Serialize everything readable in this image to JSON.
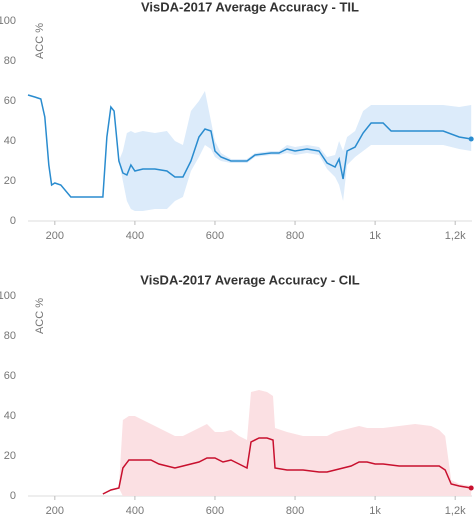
{
  "chart_data": [
    {
      "type": "line",
      "title": "VisDA-2017 Average Accuracy - TIL",
      "y_label": "ACC %",
      "grid": false,
      "xlim": [
        133,
        1242
      ],
      "ylim": [
        0,
        100
      ],
      "xticks": [
        200,
        400,
        600,
        800,
        {
          "value": 1000,
          "label": "1k"
        },
        {
          "value": 1200,
          "label": "1,2k"
        }
      ],
      "yticks": [
        0,
        20,
        40,
        60,
        80,
        100
      ],
      "x": [
        133,
        150,
        165,
        175,
        185,
        192,
        200,
        215,
        240,
        320,
        330,
        340,
        348,
        360,
        370,
        380,
        390,
        400,
        420,
        450,
        480,
        500,
        520,
        540,
        560,
        575,
        590,
        600,
        615,
        640,
        680,
        700,
        740,
        760,
        780,
        800,
        830,
        860,
        880,
        900,
        910,
        920,
        930,
        950,
        970,
        990,
        1020,
        1040,
        1170,
        1210,
        1240
      ],
      "series": [
        {
          "color": "#2a8ccf",
          "band_color": "#dcebfa",
          "values": [
            63,
            62,
            61,
            52,
            28,
            18,
            19,
            18,
            12,
            12,
            42,
            57,
            55,
            30,
            24,
            23,
            28,
            25,
            26,
            26,
            25,
            22,
            22,
            30,
            42,
            46,
            45,
            35,
            32,
            30,
            30,
            33,
            34,
            34,
            36,
            35,
            36,
            35,
            29,
            27,
            31,
            21,
            35,
            37,
            44,
            49,
            49,
            45,
            45,
            42,
            41
          ],
          "band_lower": [
            63,
            62,
            61,
            52,
            28,
            18,
            19,
            18,
            12,
            12,
            42,
            57,
            55,
            30,
            20,
            10,
            6,
            5,
            5,
            6,
            6,
            10,
            12,
            25,
            32,
            38,
            36,
            32,
            30,
            29,
            29,
            32,
            33,
            33,
            34,
            33,
            34,
            33,
            26,
            22,
            18,
            10,
            28,
            32,
            35,
            38,
            38,
            38,
            38,
            36,
            35
          ],
          "band_upper": [
            63,
            62,
            61,
            52,
            28,
            18,
            19,
            18,
            12,
            12,
            42,
            57,
            55,
            30,
            35,
            44,
            45,
            44,
            45,
            44,
            45,
            40,
            38,
            55,
            60,
            65,
            50,
            40,
            34,
            31,
            31,
            34,
            35,
            35,
            38,
            37,
            38,
            37,
            32,
            33,
            40,
            35,
            42,
            45,
            55,
            58,
            58,
            58,
            58,
            57,
            58
          ]
        }
      ]
    },
    {
      "type": "line",
      "title": "VisDA-2017 Average Accuracy - CIL",
      "y_label": "ACC %",
      "grid": false,
      "xlim": [
        133,
        1242
      ],
      "ylim": [
        0,
        100
      ],
      "xticks": [
        200,
        400,
        600,
        800,
        {
          "value": 1000,
          "label": "1k"
        },
        {
          "value": 1200,
          "label": "1,2k"
        }
      ],
      "yticks": [
        0,
        20,
        40,
        60,
        80,
        100
      ],
      "x": [
        320,
        340,
        360,
        370,
        385,
        400,
        420,
        440,
        460,
        480,
        500,
        520,
        540,
        560,
        580,
        600,
        620,
        640,
        660,
        680,
        690,
        710,
        730,
        745,
        750,
        780,
        820,
        860,
        880,
        900,
        940,
        960,
        980,
        1000,
        1020,
        1060,
        1100,
        1140,
        1160,
        1175,
        1190,
        1210,
        1240
      ],
      "series": [
        {
          "color": "#c8102e",
          "band_color": "#fbe0e3",
          "values": [
            1,
            3,
            4,
            14,
            18,
            18,
            18,
            18,
            16,
            15,
            14,
            15,
            16,
            17,
            19,
            19,
            17,
            18,
            16,
            14,
            27,
            29,
            29,
            28,
            14,
            13,
            13,
            12,
            12,
            13,
            15,
            17,
            17,
            16,
            16,
            15,
            15,
            15,
            15,
            13,
            6,
            5,
            4
          ],
          "band_lower": [
            1,
            3,
            4,
            0,
            0,
            0,
            0,
            0,
            0,
            0,
            0,
            0,
            0,
            0,
            0,
            0,
            0,
            0,
            0,
            0,
            0,
            0,
            0,
            0,
            0,
            0,
            0,
            0,
            0,
            0,
            0,
            0,
            0,
            0,
            0,
            0,
            0,
            0,
            0,
            0,
            0,
            0,
            0
          ],
          "band_upper": [
            1,
            3,
            4,
            38,
            40,
            40,
            38,
            36,
            34,
            32,
            30,
            30,
            32,
            34,
            36,
            32,
            32,
            33,
            30,
            28,
            52,
            53,
            52,
            50,
            34,
            32,
            30,
            30,
            30,
            32,
            34,
            35,
            34,
            34,
            34,
            35,
            36,
            35,
            33,
            30,
            8,
            6,
            5
          ]
        }
      ]
    }
  ]
}
